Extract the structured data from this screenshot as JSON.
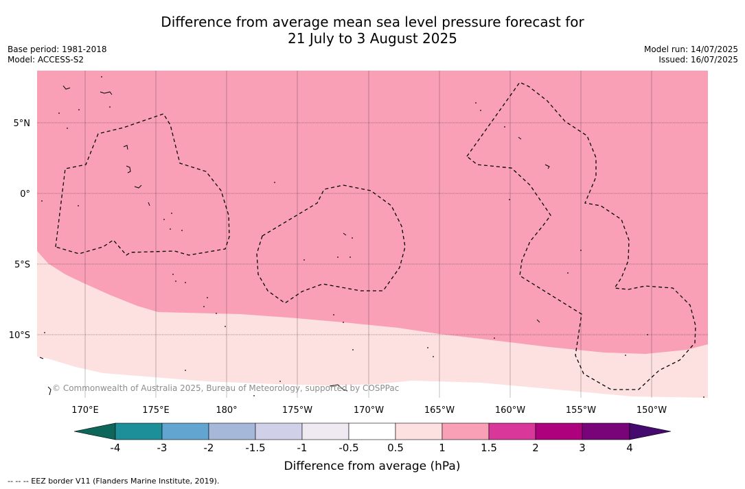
{
  "title": {
    "line1": "Difference from average mean sea level pressure forecast for",
    "line2": "21 July to 3 August 2025"
  },
  "meta": {
    "base_period": "Base period: 1981-2018",
    "model": "Model: ACCESS-S2",
    "model_run": "Model run: 14/07/2025",
    "issued": "Issued: 16/07/2025"
  },
  "map": {
    "lat_labels": [
      "5°N",
      "0°",
      "5°S",
      "10°S"
    ],
    "lon_labels": [
      "170°E",
      "175°E",
      "180°",
      "175°W",
      "170°W",
      "165°W",
      "160°W",
      "155°W",
      "150°W"
    ],
    "copyright": "© Commonwealth of Australia 2025, Bureau of Meteorology, supported by COSPPac",
    "region_colors": {
      "anomaly_1_to_1_5": "#f9a0b7",
      "anomaly_0_5_to_1": "#fde0e0",
      "anomaly_neg0_5_to_0_5": "#ffffff"
    }
  },
  "colorbar": {
    "ticks": [
      "-4",
      "-3",
      "-2",
      "-1.5",
      "-1",
      "-0.5",
      "0.5",
      "1",
      "1.5",
      "2",
      "3",
      "4"
    ],
    "under_color": "#0d6659",
    "over_color": "#440a6e",
    "colors": [
      "#1c8f99",
      "#62a5d0",
      "#a5b8da",
      "#d0d1e8",
      "#efe9f2",
      "#ffffff",
      "#fde0e0",
      "#f9a0b7",
      "#d9379a",
      "#ad017e",
      "#790378"
    ],
    "label": "Difference from average (hPa)"
  },
  "footnote": "--  --  -- EEZ border V11 (Flanders Marine Institute, 2019)."
}
